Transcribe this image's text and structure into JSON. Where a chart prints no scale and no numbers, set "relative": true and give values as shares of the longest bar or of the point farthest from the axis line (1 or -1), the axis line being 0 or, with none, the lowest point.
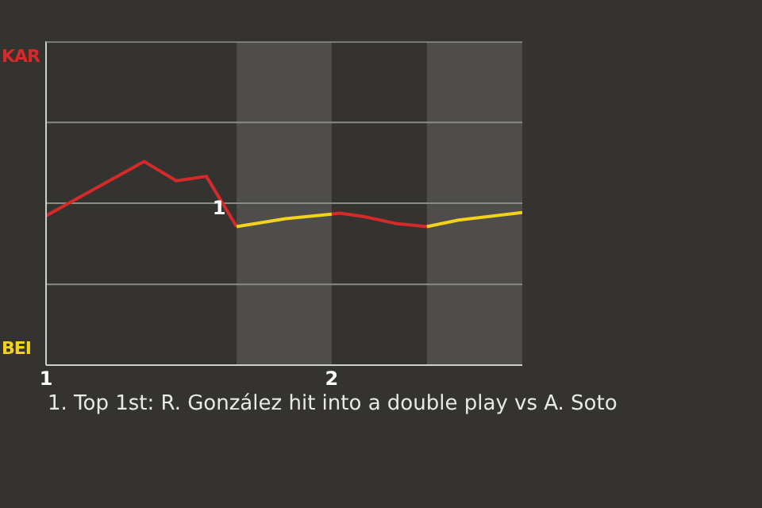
{
  "chart_data": {
    "type": "line",
    "relative": true,
    "xlim": [
      1,
      2.667
    ],
    "xticks": [
      1,
      2
    ],
    "tick_labels": "x",
    "marker": "none",
    "ref_lines": [
      {
        "axis": "y",
        "value": 0.397,
        "color": "#8a8a88"
      },
      {
        "axis": "y",
        "value": 0.795,
        "color": "#8a8a88"
      },
      {
        "axis": "y",
        "value": 1.192,
        "color": "#8a8a88"
      }
    ],
    "line_style": "solid",
    "series": [
      {
        "color": "#d42a2a",
        "x": [
          1,
          1.343,
          1.456,
          1.561,
          1.667
        ],
        "values": [
          0.733,
          1,
          0.905,
          0.927,
          0.68
        ]
      },
      {
        "color": "#f2d21a",
        "x": [
          1.667,
          1.839,
          2
        ],
        "values": [
          0.68,
          0.719,
          0.741
        ]
      },
      {
        "color": "#d42a2a",
        "x": [
          2,
          2.028,
          2.111,
          2.222,
          2.333
        ],
        "values": [
          0.741,
          0.746,
          0.73,
          0.696,
          0.68
        ]
      },
      {
        "color": "#f2d21a",
        "x": [
          2.333,
          2.444,
          2.667
        ],
        "values": [
          0.68,
          0.712,
          0.749
        ]
      }
    ],
    "bands": [
      {
        "axis": "x",
        "from": 1.667,
        "to": 2,
        "color": "#4e4d4b"
      },
      {
        "axis": "x",
        "from": 2.333,
        "to": 2.667,
        "color": "#4e4d4b"
      }
    ],
    "annotations": [
      {
        "text": "1",
        "x": 1.667,
        "y": 0.68
      },
      "KAR",
      "BEI",
      "1. Top 1st: R. González hit into a double play vs A. Soto"
    ]
  }
}
